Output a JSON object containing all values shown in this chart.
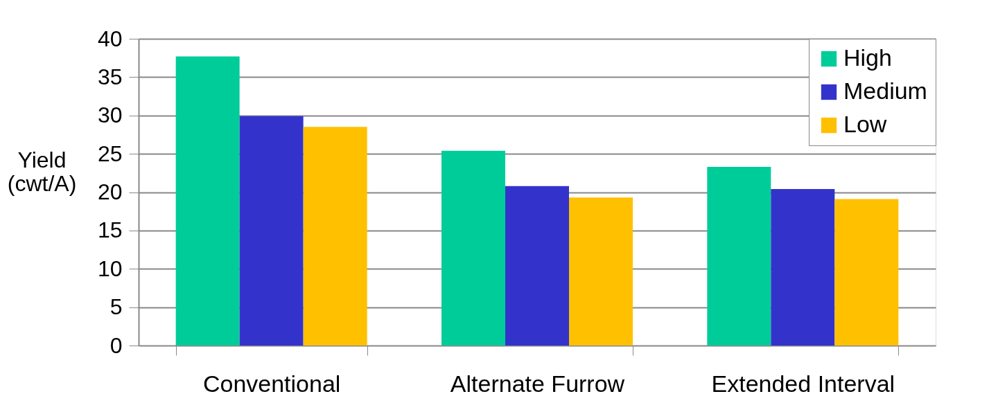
{
  "chart_data": {
    "type": "bar",
    "ylabel": "Yield\n(cwt/A)",
    "categories": [
      "Conventional",
      "Alternate Furrow",
      "Extended Interval"
    ],
    "series": [
      {
        "name": "High",
        "color": "#00cc99",
        "values": [
          37.7,
          25.4,
          23.3
        ]
      },
      {
        "name": "Medium",
        "color": "#3333cc",
        "values": [
          29.9,
          20.8,
          20.4
        ]
      },
      {
        "name": "Low",
        "color": "#ffc000",
        "values": [
          28.5,
          19.3,
          19.1
        ]
      }
    ],
    "ylim": [
      0,
      40
    ],
    "yticks": [
      0,
      5,
      10,
      15,
      20,
      25,
      30,
      35,
      40
    ],
    "grid": "y",
    "legend": "top right"
  }
}
